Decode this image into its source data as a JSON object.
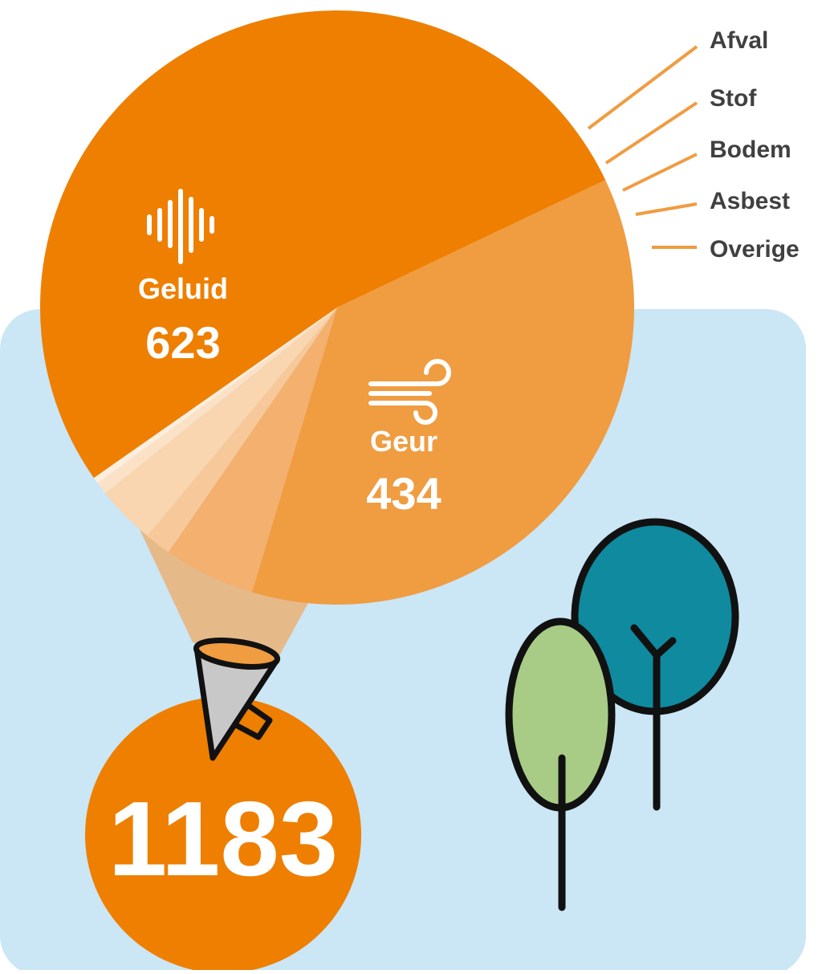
{
  "colors": {
    "background_panel": "#cbe6f5",
    "primary_orange": "#ee7f00",
    "light_orange": "#f09c41",
    "beam": "#e6b989",
    "label_text": "#404040",
    "tree_teal": "#0f8a9e",
    "tree_green": "#a8cc86",
    "megaphone_grey": "#c8c8c8"
  },
  "chart_data": {
    "type": "pie",
    "total": 1183,
    "slices": [
      {
        "label": "Geluid",
        "value": 623,
        "color": "#ee7f00",
        "icon": "sound-wave-icon"
      },
      {
        "label": "Geur",
        "value": 434,
        "color": "#f09c41",
        "icon": "wind-icon"
      },
      {
        "label": "Overige",
        "value": 59,
        "color": "#f3b06e"
      },
      {
        "label": "Asbest",
        "value": 17,
        "color": "#f7c99a"
      },
      {
        "label": "Bodem",
        "value": 38,
        "color": "#f9d5b0"
      },
      {
        "label": "Stof",
        "value": 8,
        "color": "#fbe1c6"
      },
      {
        "label": "Afval",
        "value": 4,
        "color": "#fdeedd"
      }
    ],
    "legend_placement": "top-right"
  }
}
